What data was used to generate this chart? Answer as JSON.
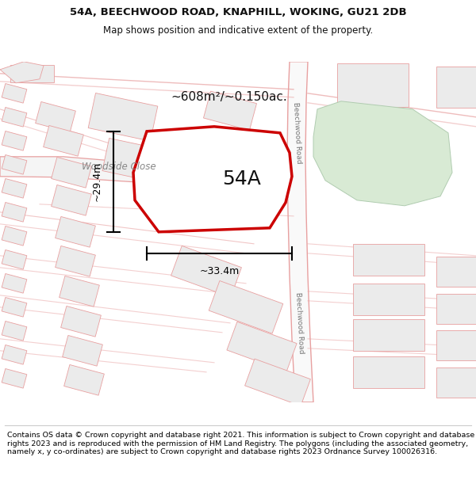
{
  "title_line1": "54A, BEECHWOOD ROAD, KNAPHILL, WOKING, GU21 2DB",
  "title_line2": "Map shows position and indicative extent of the property.",
  "footer_text": "Contains OS data © Crown copyright and database right 2021. This information is subject to Crown copyright and database rights 2023 and is reproduced with the permission of HM Land Registry. The polygons (including the associated geometry, namely x, y co-ordinates) are subject to Crown copyright and database rights 2023 Ordnance Survey 100026316.",
  "area_label": "~608m²/~0.150ac.",
  "label_54A": "54A",
  "dim_width": "~33.4m",
  "dim_height": "~29.4m",
  "road_label_top": "Beechwood Road",
  "road_label_bottom": "Beechwood Road",
  "street_label": "Woodside Close",
  "map_bg": "#ffffff",
  "road_line_color": "#e8a0a0",
  "property_outline_color": "#cc0000",
  "green_fill_color": "#d8ead4",
  "dim_line_color": "#000000",
  "block_fill": "#ebebeb",
  "block_edge": "#e8a0a0"
}
